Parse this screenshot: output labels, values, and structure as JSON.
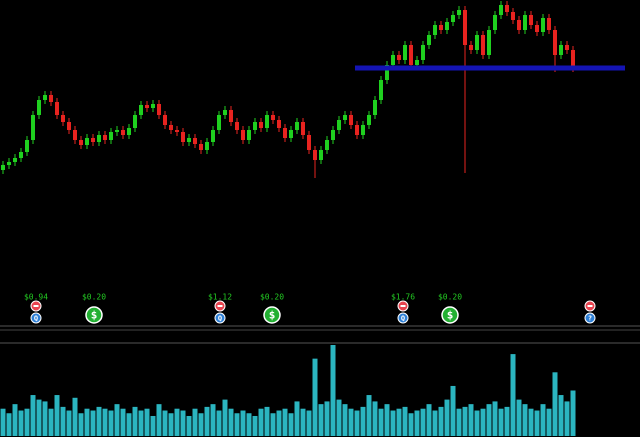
{
  "chart_data": {
    "type": "candlestick",
    "up_color": "#1fd11f",
    "down_color": "#e8231f",
    "ylim": [
      110,
      300
    ],
    "ohlc": [
      [
        130,
        139,
        126,
        135
      ],
      [
        135,
        142,
        131,
        138
      ],
      [
        138,
        146,
        134,
        142
      ],
      [
        142,
        152,
        138,
        148
      ],
      [
        148,
        164,
        144,
        160
      ],
      [
        160,
        189,
        156,
        185
      ],
      [
        185,
        204,
        181,
        200
      ],
      [
        200,
        209,
        196,
        205
      ],
      [
        205,
        209,
        194,
        198
      ],
      [
        198,
        202,
        181,
        185
      ],
      [
        185,
        189,
        174,
        178
      ],
      [
        178,
        182,
        166,
        170
      ],
      [
        170,
        174,
        156,
        160
      ],
      [
        160,
        164,
        151,
        155
      ],
      [
        155,
        166,
        151,
        162
      ],
      [
        162,
        166,
        154,
        158
      ],
      [
        158,
        169,
        154,
        165
      ],
      [
        165,
        169,
        156,
        160
      ],
      [
        160,
        172,
        156,
        168
      ],
      [
        168,
        174,
        164,
        170
      ],
      [
        170,
        174,
        161,
        165
      ],
      [
        165,
        176,
        161,
        172
      ],
      [
        172,
        189,
        168,
        185
      ],
      [
        185,
        199,
        181,
        195
      ],
      [
        195,
        199,
        188,
        192
      ],
      [
        192,
        200,
        188,
        196
      ],
      [
        196,
        200,
        181,
        185
      ],
      [
        185,
        189,
        171,
        175
      ],
      [
        175,
        179,
        166,
        170
      ],
      [
        170,
        174,
        164,
        168
      ],
      [
        168,
        172,
        154,
        158
      ],
      [
        158,
        166,
        154,
        162
      ],
      [
        162,
        166,
        152,
        156
      ],
      [
        156,
        160,
        146,
        150
      ],
      [
        150,
        162,
        146,
        158
      ],
      [
        158,
        174,
        154,
        170
      ],
      [
        170,
        189,
        166,
        185
      ],
      [
        185,
        194,
        181,
        190
      ],
      [
        190,
        194,
        174,
        178
      ],
      [
        178,
        182,
        166,
        170
      ],
      [
        170,
        174,
        156,
        160
      ],
      [
        160,
        174,
        156,
        170
      ],
      [
        170,
        182,
        166,
        178
      ],
      [
        178,
        182,
        168,
        172
      ],
      [
        172,
        189,
        168,
        185
      ],
      [
        185,
        189,
        176,
        180
      ],
      [
        180,
        184,
        168,
        172
      ],
      [
        172,
        176,
        158,
        162
      ],
      [
        162,
        174,
        158,
        170
      ],
      [
        170,
        182,
        166,
        178
      ],
      [
        178,
        182,
        161,
        165
      ],
      [
        165,
        169,
        146,
        150
      ],
      [
        150,
        154,
        122,
        140
      ],
      [
        140,
        154,
        136,
        150
      ],
      [
        150,
        164,
        146,
        160
      ],
      [
        160,
        174,
        156,
        170
      ],
      [
        170,
        184,
        166,
        180
      ],
      [
        180,
        189,
        176,
        185
      ],
      [
        185,
        189,
        171,
        175
      ],
      [
        175,
        179,
        161,
        165
      ],
      [
        165,
        179,
        161,
        175
      ],
      [
        175,
        189,
        171,
        185
      ],
      [
        185,
        204,
        181,
        200
      ],
      [
        200,
        224,
        196,
        220
      ],
      [
        220,
        239,
        216,
        235
      ],
      [
        235,
        249,
        231,
        245
      ],
      [
        245,
        249,
        236,
        240
      ],
      [
        240,
        259,
        236,
        255
      ],
      [
        255,
        259,
        231,
        235
      ],
      [
        235,
        244,
        231,
        240
      ],
      [
        240,
        259,
        236,
        255
      ],
      [
        255,
        269,
        251,
        265
      ],
      [
        265,
        279,
        261,
        275
      ],
      [
        275,
        279,
        266,
        270
      ],
      [
        270,
        282,
        266,
        278
      ],
      [
        278,
        289,
        274,
        285
      ],
      [
        285,
        294,
        281,
        290
      ],
      [
        290,
        294,
        127,
        255
      ],
      [
        255,
        259,
        246,
        250
      ],
      [
        250,
        269,
        246,
        265
      ],
      [
        265,
        269,
        241,
        245
      ],
      [
        245,
        274,
        241,
        270
      ],
      [
        270,
        289,
        266,
        285
      ],
      [
        285,
        299,
        281,
        295
      ],
      [
        295,
        299,
        284,
        288
      ],
      [
        288,
        292,
        276,
        280
      ],
      [
        280,
        284,
        266,
        270
      ],
      [
        270,
        289,
        266,
        285
      ],
      [
        285,
        289,
        271,
        275
      ],
      [
        275,
        279,
        264,
        268
      ],
      [
        268,
        286,
        264,
        282
      ],
      [
        282,
        286,
        266,
        270
      ],
      [
        270,
        274,
        228,
        245
      ],
      [
        245,
        259,
        241,
        255
      ],
      [
        255,
        259,
        246,
        250
      ],
      [
        250,
        254,
        228,
        232
      ]
    ],
    "level": 232,
    "level_color": "#1414b4",
    "volume": [
      30,
      25,
      35,
      28,
      30,
      45,
      40,
      38,
      30,
      45,
      32,
      28,
      42,
      25,
      30,
      28,
      32,
      30,
      28,
      35,
      30,
      25,
      32,
      28,
      30,
      22,
      35,
      28,
      25,
      30,
      28,
      22,
      30,
      25,
      32,
      35,
      28,
      40,
      30,
      25,
      28,
      25,
      22,
      30,
      32,
      25,
      28,
      30,
      25,
      38,
      30,
      28,
      85,
      35,
      38,
      100,
      40,
      35,
      30,
      28,
      32,
      45,
      38,
      30,
      35,
      28,
      30,
      32,
      25,
      28,
      30,
      35,
      28,
      32,
      40,
      55,
      30,
      32,
      35,
      28,
      30,
      35,
      38,
      30,
      32,
      90,
      40,
      35,
      30,
      28,
      35,
      30,
      70,
      45,
      38,
      50
    ],
    "volume_color": "#2bb5c0",
    "volume_lim": [
      0,
      100
    ],
    "events": [
      {
        "kind": "earnings",
        "label": "$0.94",
        "icon": "Q"
      },
      {
        "kind": "dividend",
        "label": "$0.20",
        "icon": "$"
      },
      {
        "kind": "earnings",
        "label": "$1.12",
        "icon": "Q"
      },
      {
        "kind": "dividend",
        "label": "$0.20",
        "icon": "$"
      },
      {
        "kind": "earnings",
        "label": "$1.76",
        "icon": "Q"
      },
      {
        "kind": "dividend",
        "label": "$0.20",
        "icon": "$"
      },
      {
        "kind": "earnings",
        "icon": "?"
      }
    ]
  }
}
